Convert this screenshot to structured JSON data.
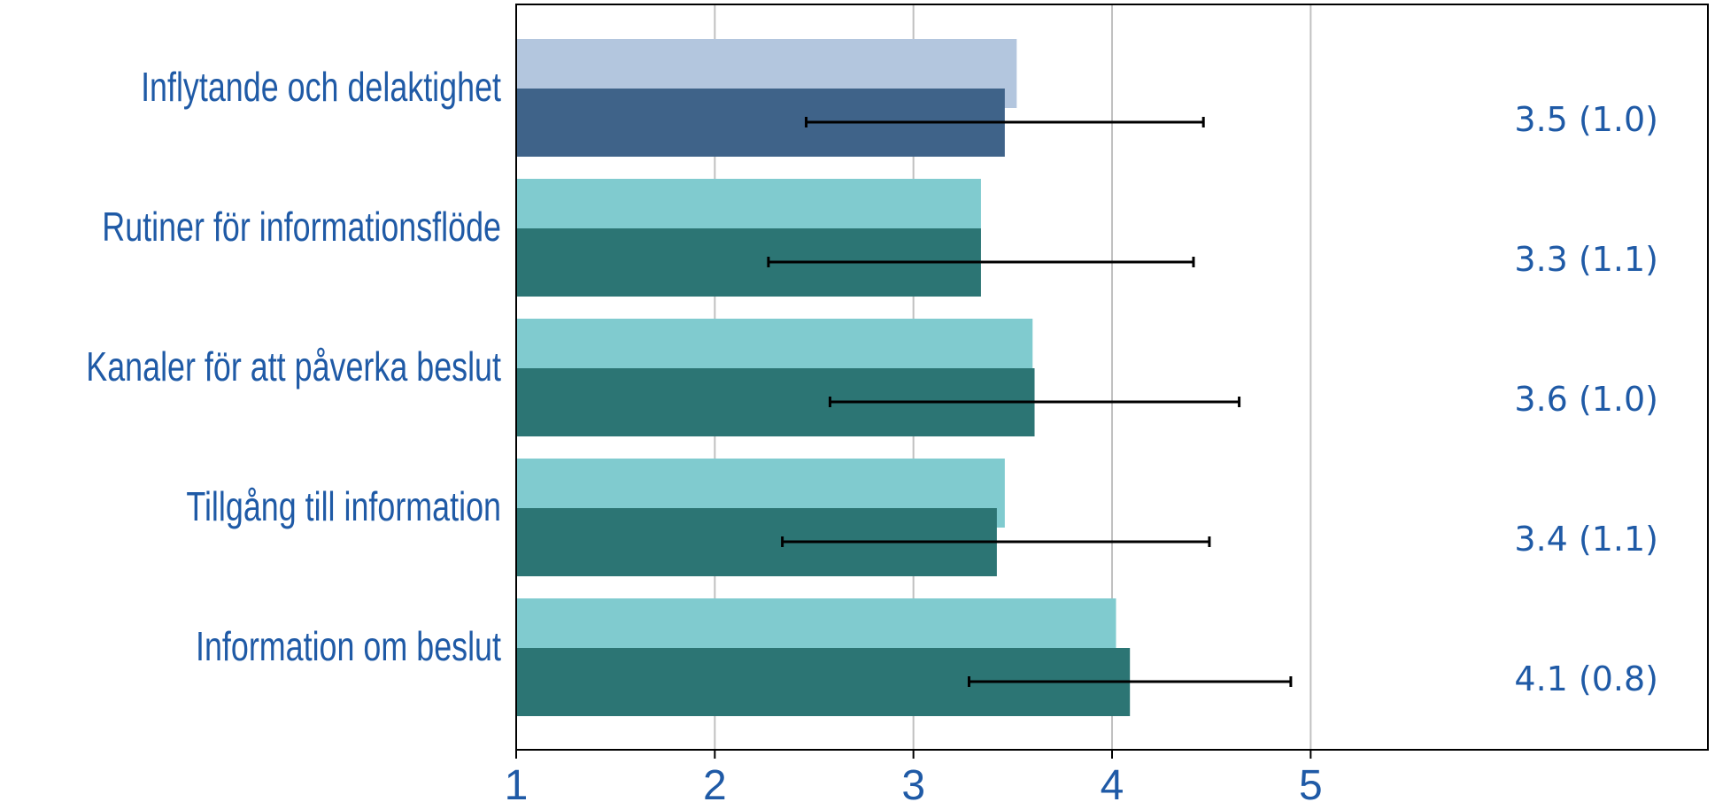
{
  "chart_data": {
    "type": "bar",
    "orientation": "horizontal",
    "xlim": [
      1,
      7
    ],
    "xticks": [
      1,
      2,
      3,
      4,
      5
    ],
    "grid": "vertical",
    "categories": [
      "Inflytande och delaktighet",
      "Rutiner för informationsflöde",
      "Kanaler för att påverka beslut",
      "Tillgång till information",
      "Information om beslut"
    ],
    "series": [
      {
        "values": [
          3.52,
          3.34,
          3.6,
          3.46,
          4.02
        ]
      },
      {
        "values": [
          3.46,
          3.34,
          3.61,
          3.42,
          4.09
        ]
      }
    ],
    "error_bars": {
      "series_index": 1,
      "low": [
        2.46,
        2.27,
        2.58,
        2.34,
        3.28
      ],
      "high": [
        4.46,
        4.41,
        4.64,
        4.49,
        4.9
      ]
    },
    "stat_labels": [
      "3.5 (1.0)",
      "3.3 (1.1)",
      "3.6 (1.0)",
      "3.4 (1.1)",
      "4.1 (0.8)"
    ],
    "colors": {
      "first_row_light": "#b3c6de",
      "first_row_dark": "#3f6389",
      "light": "#80cbcf",
      "dark": "#2c7574",
      "error_bar": "#000000",
      "text": "#1f5aa6",
      "grid": "#c0c0c0",
      "frame": "#000000"
    }
  }
}
